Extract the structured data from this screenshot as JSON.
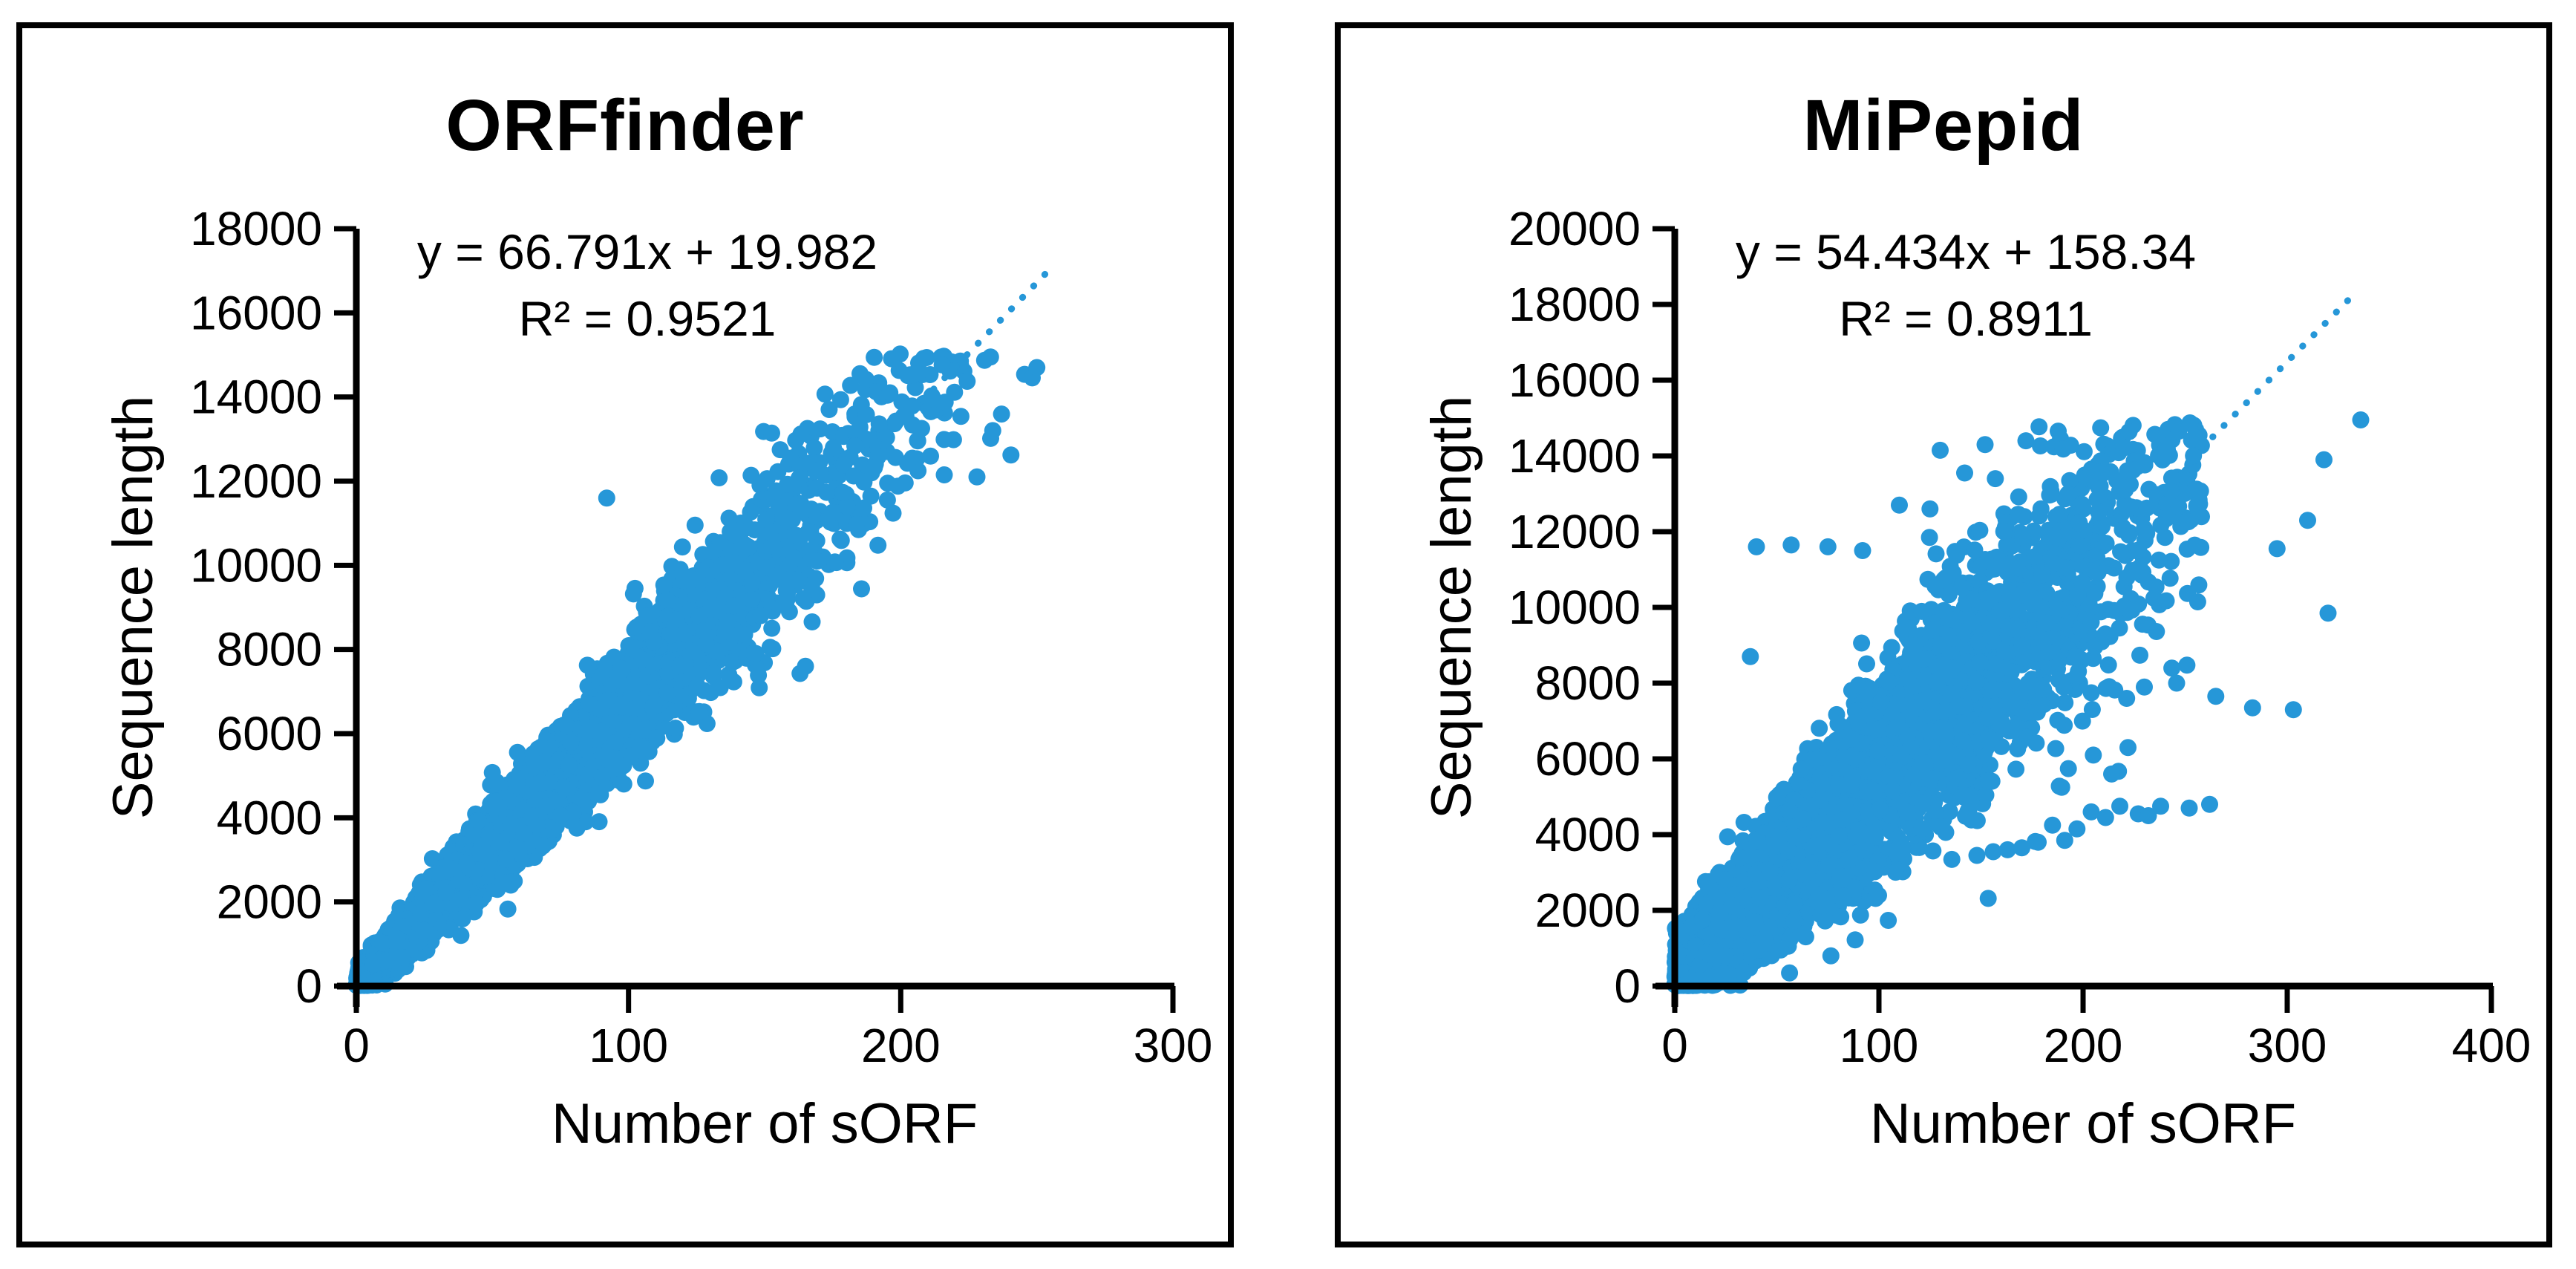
{
  "figure": {
    "background": "#ffffff",
    "border_color": "#000000",
    "axis_color": "#000000",
    "text_color": "#000000",
    "dot_color": "#2697d8"
  },
  "chart_data": [
    {
      "type": "scatter",
      "title": "ORFfinder",
      "xlabel": "Number of sORF",
      "ylabel": "Sequence length",
      "equation": "y = 66.791x + 19.982",
      "r_squared": "R² = 0.9521",
      "xlim": [
        0,
        300
      ],
      "ylim": [
        0,
        18000
      ],
      "x_ticks": [
        0,
        100,
        200,
        300
      ],
      "y_ticks": [
        0,
        2000,
        4000,
        6000,
        8000,
        10000,
        12000,
        14000,
        16000,
        18000
      ],
      "grid": false,
      "legend": "none",
      "regression": {
        "slope": 66.791,
        "intercept": 19.982
      },
      "trendline_dotted_x": [
        208,
        253
      ],
      "cloud_model": {
        "n": 5200,
        "seed": 20,
        "x_halfnormal_sigma": 80,
        "x_max": 250,
        "noise_base": 180,
        "noise_per_x": 5.4,
        "y_clip_min": 15,
        "y_clip_max": 15050,
        "note": "dense elongated cloud hugging regression line from origin to ~(250,15000)"
      },
      "outliers": [
        [
          92,
          11600
        ],
        [
          152,
          8050
        ],
        [
          163,
          7430
        ],
        [
          165,
          7600
        ],
        [
          250,
          14700
        ],
        [
          233,
          14950
        ],
        [
          222,
          14750
        ],
        [
          205,
          14550
        ],
        [
          212,
          13950
        ],
        [
          228,
          12100
        ],
        [
          216,
          12150
        ],
        [
          196,
          14100
        ]
      ]
    },
    {
      "type": "scatter",
      "title": "MiPepid",
      "xlabel": "Number of sORF",
      "ylabel": "Sequence length",
      "equation": "y = 54.434x + 158.34",
      "r_squared": "R² = 0.8911",
      "xlim": [
        0,
        400
      ],
      "ylim": [
        0,
        20000
      ],
      "x_ticks": [
        0,
        100,
        200,
        300,
        400
      ],
      "y_ticks": [
        0,
        2000,
        4000,
        6000,
        8000,
        10000,
        12000,
        14000,
        16000,
        18000,
        20000
      ],
      "grid": false,
      "legend": "none",
      "regression": {
        "slope": 54.434,
        "intercept": 158.34
      },
      "trendline_dotted_x": [
        258,
        334
      ],
      "cloud_model": {
        "n": 5200,
        "seed": 7,
        "x_halfnormal_sigma": 105,
        "x_max": 260,
        "noise_base": 450,
        "noise_per_x": 8.0,
        "y_clip_min": 15,
        "y_clip_max": 14900,
        "note": "broad dispersed cloud from origin to ~(260,14000)"
      },
      "outliers": [
        [
          40,
          11600
        ],
        [
          57,
          11650
        ],
        [
          37,
          8700
        ],
        [
          75,
          11600
        ],
        [
          92,
          11500
        ],
        [
          110,
          12700
        ],
        [
          125,
          12600
        ],
        [
          130,
          14150
        ],
        [
          142,
          13550
        ],
        [
          152,
          14300
        ],
        [
          157,
          13400
        ],
        [
          172,
          14400
        ],
        [
          148,
          3450
        ],
        [
          156,
          3550
        ],
        [
          163,
          3600
        ],
        [
          170,
          3650
        ],
        [
          178,
          3800
        ],
        [
          185,
          4250
        ],
        [
          191,
          3850
        ],
        [
          197,
          4150
        ],
        [
          204,
          4600
        ],
        [
          211,
          4450
        ],
        [
          218,
          4750
        ],
        [
          227,
          4550
        ],
        [
          238,
          4750
        ],
        [
          252,
          4700
        ],
        [
          262,
          4800
        ],
        [
          205,
          6100
        ],
        [
          214,
          5600
        ],
        [
          222,
          6300
        ],
        [
          232,
          4500
        ],
        [
          265,
          7650
        ],
        [
          283,
          7350
        ],
        [
          303,
          7300
        ],
        [
          320,
          9850
        ],
        [
          336,
          14950
        ],
        [
          295,
          11550
        ],
        [
          310,
          12300
        ],
        [
          318,
          13900
        ]
      ]
    }
  ]
}
